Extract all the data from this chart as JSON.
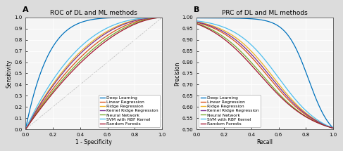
{
  "title_A": "ROC of DL and ML methods",
  "title_B": "PRC of DL and ML methods",
  "xlabel_A": "1 - Specificity",
  "ylabel_A": "Sensitivity",
  "xlabel_B": "Recall",
  "ylabel_B": "Precision",
  "label_A": "A",
  "label_B": "B",
  "legend_entries": [
    "Deep Learning",
    "Linear Regression",
    "Ridge Regression",
    "Kernel Ridge Regression",
    "Neural Network",
    "SVM with RBF Kernel",
    "Random Forests"
  ],
  "colors": [
    "#0072BD",
    "#D95319",
    "#EDB120",
    "#7E2F8E",
    "#77AC30",
    "#4DBEEE",
    "#A2142F"
  ],
  "roc_shapes": [
    6.0,
    2.0,
    2.3,
    2.2,
    1.85,
    2.6,
    1.75
  ],
  "prc_params": [
    {
      "drop": 0.82,
      "steep": 12.0,
      "floor": 0.505
    },
    {
      "drop": 0.52,
      "steep": 5.5,
      "floor": 0.505
    },
    {
      "drop": 0.56,
      "steep": 5.8,
      "floor": 0.505
    },
    {
      "drop": 0.54,
      "steep": 5.6,
      "floor": 0.505
    },
    {
      "drop": 0.48,
      "steep": 5.2,
      "floor": 0.505
    },
    {
      "drop": 0.6,
      "steep": 6.2,
      "floor": 0.505
    },
    {
      "drop": 0.46,
      "steep": 5.0,
      "floor": 0.505
    }
  ],
  "prc_starts": [
    0.998,
    0.978,
    0.981,
    0.98,
    0.974,
    0.985,
    0.972
  ],
  "ylim_B": [
    0.5,
    1.0
  ],
  "yticks_B": [
    0.5,
    0.55,
    0.6,
    0.65,
    0.7,
    0.75,
    0.8,
    0.85,
    0.9,
    0.95,
    1.0
  ],
  "yticks_A": [
    0,
    0.1,
    0.2,
    0.3,
    0.4,
    0.5,
    0.6,
    0.7,
    0.8,
    0.9,
    1.0
  ],
  "xticks": [
    0,
    0.2,
    0.4,
    0.6,
    0.8,
    1.0
  ],
  "bg_color": "#dcdcdc",
  "axes_bg": "#f5f5f5",
  "grid_color": "white",
  "border_color": "#555555",
  "title_fontsize": 6.5,
  "axis_fontsize": 5.5,
  "tick_fontsize": 5.0,
  "legend_fontsize": 4.3,
  "linewidth": 0.9
}
